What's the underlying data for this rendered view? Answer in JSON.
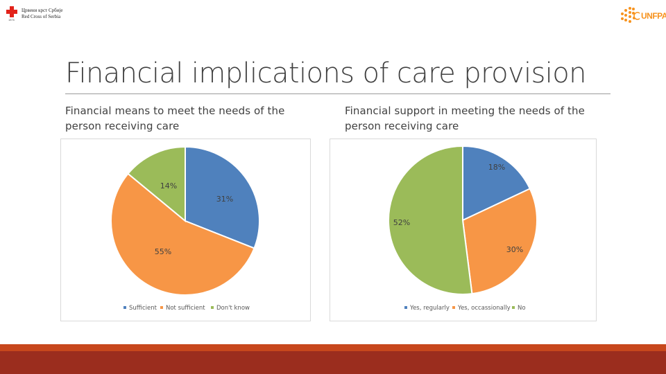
{
  "logos": {
    "left_lines": [
      "Црвени крст Србије",
      "Red Cross of Serbia"
    ],
    "left_small": "1876",
    "right_text": "UNFPA"
  },
  "slide": {
    "title": "Financial implications of care provision",
    "left_subtitle": "Financial means to meet the needs of the person receiving care",
    "right_subtitle": "Financial support in meeting the needs of the person receiving care"
  },
  "colors": {
    "blue": "#4f81bd",
    "orange": "#f79646",
    "green": "#9bbb59",
    "footer_top": "#c7471c",
    "footer_bottom": "#9b2d1e",
    "redcross": "#e2231a"
  },
  "chart_data": [
    {
      "type": "pie",
      "title": "Financial means to meet the needs of the person receiving care",
      "categories": [
        "Sufficient",
        "Not sufficient",
        "Don't know"
      ],
      "values": [
        31,
        55,
        14
      ],
      "labels": [
        "31%",
        "55%",
        "14%"
      ],
      "colors": [
        "#4f81bd",
        "#f79646",
        "#9bbb59"
      ],
      "legend": "bottom"
    },
    {
      "type": "pie",
      "title": "Financial support in meeting the needs of the person receiving care",
      "categories": [
        "Yes, regularly",
        "Yes, occassionally",
        "No"
      ],
      "values": [
        18,
        30,
        52
      ],
      "labels": [
        "18%",
        "30%",
        "52%"
      ],
      "colors": [
        "#4f81bd",
        "#f79646",
        "#9bbb59"
      ],
      "legend": "bottom"
    }
  ]
}
